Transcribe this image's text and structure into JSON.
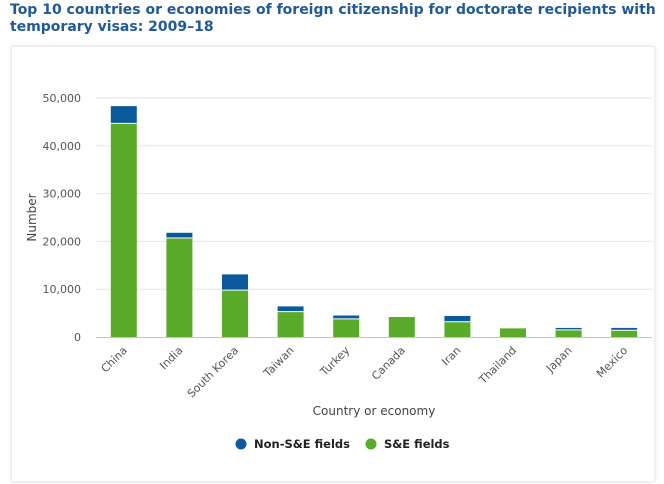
{
  "chart_data": {
    "type": "bar",
    "stacked": true,
    "title": "Top 10 countries or economies of foreign citizenship for doctorate recipients with temporary visas: 2009–18",
    "xlabel": "Country or economy",
    "ylabel": "Number",
    "ylim": [
      0,
      50000
    ],
    "yticks": [
      0,
      10000,
      20000,
      30000,
      40000,
      50000
    ],
    "ytick_labels": [
      "0",
      "10,000",
      "20,000",
      "30,000",
      "40,000",
      "50,000"
    ],
    "categories": [
      "China",
      "India",
      "South Korea",
      "Taiwan",
      "Turkey",
      "Canada",
      "Iran",
      "Thailand",
      "Japan",
      "Mexico"
    ],
    "series": [
      {
        "name": "S&E fields",
        "color": "#5aab2a",
        "values": [
          44700,
          20700,
          9800,
          5300,
          3800,
          4300,
          3200,
          1900,
          1500,
          1400
        ]
      },
      {
        "name": "Non-S&E fields",
        "color": "#0c5a9e",
        "values": [
          3600,
          1100,
          3300,
          1100,
          700,
          100,
          1200,
          100,
          400,
          500
        ]
      }
    ],
    "legend_order": [
      "Non-S&E fields",
      "S&E fields"
    ],
    "legend_position": "bottom-center",
    "grid": true
  }
}
